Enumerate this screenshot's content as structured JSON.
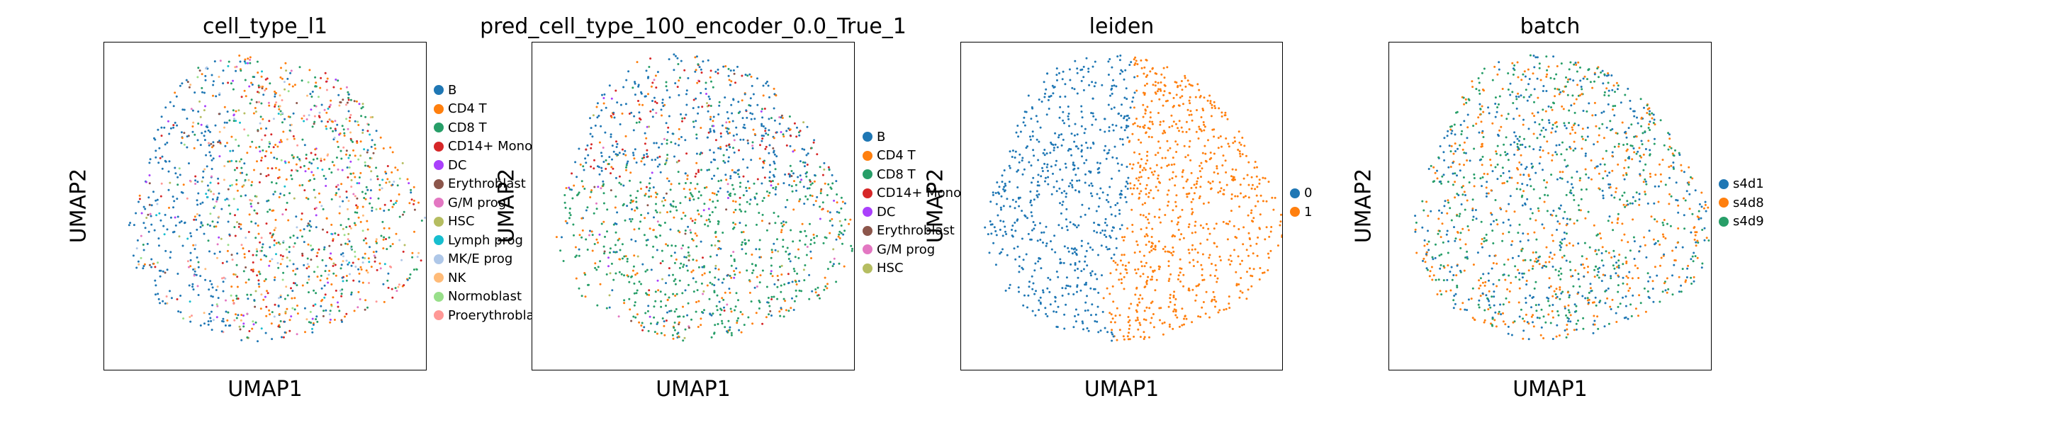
{
  "chart_data": [
    {
      "type": "scatter",
      "title": "cell_type_l1",
      "xlabel": "UMAP1",
      "ylabel": "UMAP2",
      "ticks": "none",
      "grid": false,
      "legend_placement": "right-outside",
      "coloring": "mixed",
      "categories": [
        {
          "name": "B",
          "color": "#1f77b4"
        },
        {
          "name": "CD4 T",
          "color": "#ff7f0e"
        },
        {
          "name": "CD8 T",
          "color": "#279e68"
        },
        {
          "name": "CD14+ Mono",
          "color": "#d62728"
        },
        {
          "name": "DC",
          "color": "#aa40fc"
        },
        {
          "name": "Erythroblast",
          "color": "#8c564b"
        },
        {
          "name": "G/M prog",
          "color": "#e377c2"
        },
        {
          "name": "HSC",
          "color": "#b5bd61"
        },
        {
          "name": "Lymph prog",
          "color": "#17becf"
        },
        {
          "name": "MK/E prog",
          "color": "#aec7e8"
        },
        {
          "name": "NK",
          "color": "#ffbb78"
        },
        {
          "name": "Normoblast",
          "color": "#98df8a"
        },
        {
          "name": "Proerythroblast",
          "color": "#ff9896"
        }
      ]
    },
    {
      "type": "scatter",
      "title": "pred_cell_type_100_encoder_0.0_True_1",
      "xlabel": "UMAP1",
      "ylabel": "UMAP2",
      "ticks": "none",
      "grid": false,
      "legend_placement": "right-outside",
      "coloring": "mixed-top-blue-bottom-green",
      "categories": [
        {
          "name": "B",
          "color": "#1f77b4"
        },
        {
          "name": "CD4 T",
          "color": "#ff7f0e"
        },
        {
          "name": "CD8 T",
          "color": "#279e68"
        },
        {
          "name": "CD14+ Mono",
          "color": "#d62728"
        },
        {
          "name": "DC",
          "color": "#aa40fc"
        },
        {
          "name": "Erythroblast",
          "color": "#8c564b"
        },
        {
          "name": "G/M prog",
          "color": "#e377c2"
        },
        {
          "name": "HSC",
          "color": "#b5bd61"
        }
      ]
    },
    {
      "type": "scatter",
      "title": "leiden",
      "xlabel": "UMAP1",
      "ylabel": "UMAP2",
      "ticks": "none",
      "grid": false,
      "legend_placement": "right-outside",
      "coloring": "split-left-right",
      "categories": [
        {
          "name": "0",
          "color": "#1f77b4"
        },
        {
          "name": "1",
          "color": "#ff7f0e"
        }
      ]
    },
    {
      "type": "scatter",
      "title": "batch",
      "xlabel": "UMAP1",
      "ylabel": "UMAP2",
      "ticks": "none",
      "grid": false,
      "legend_placement": "right-outside",
      "coloring": "mixed",
      "categories": [
        {
          "name": "s4d1",
          "color": "#1f77b4"
        },
        {
          "name": "s4d8",
          "color": "#ff7f0e"
        },
        {
          "name": "s4d9",
          "color": "#279e68"
        }
      ]
    }
  ]
}
